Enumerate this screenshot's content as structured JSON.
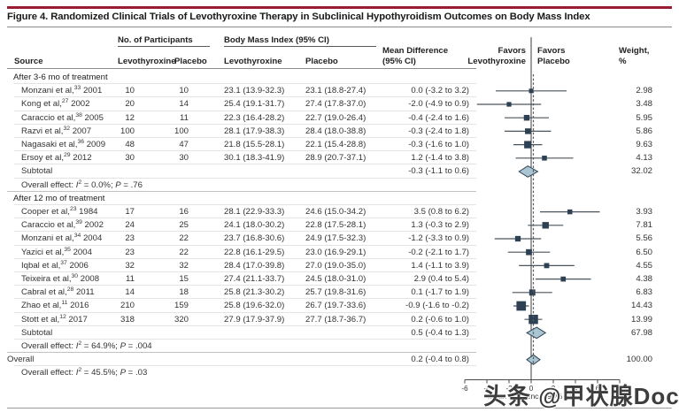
{
  "figure_title": "Figure 4. Randomized Clinical Trials of Levothyroxine Therapy in Subclinical Hypothyroidism Outcomes on Body Mass Index",
  "header": {
    "participants_group": "No. of Participants",
    "bmi_group": "Body Mass Index (95% CI)",
    "source": "Source",
    "col_levothyroxine": "Levothyroxine",
    "col_placebo": "Placebo",
    "col_bmi_levothyroxine": "Levothyroxine",
    "col_bmi_placebo": "Placebo",
    "mean_difference_line1": "Mean Difference",
    "mean_difference_line2": "(95% CI)",
    "favors_left_line1": "Favors",
    "favors_left_line2": "Levothyroxine",
    "favors_right_line1": "Favors",
    "favors_right_line2": "Placebo",
    "weight_line1": "Weight,",
    "weight_line2": "%"
  },
  "chart_data": {
    "type": "forest",
    "xlabel": "Mean Difference (95% CI)",
    "xlim": [
      -6,
      8
    ],
    "ticks": [
      -6,
      -4,
      -2,
      0,
      2,
      4,
      6,
      8
    ],
    "zero_line_x": 0,
    "dashed_line_x": 0.2,
    "groups": [
      {
        "label": "After 3-6 mo of treatment",
        "studies": [
          {
            "name": "Monzani et al,",
            "ref": "33",
            "year": "2001",
            "n_levo": "10",
            "n_placebo": "10",
            "bmi_levo": "23.1 (13.9-32.3)",
            "bmi_placebo": "23.1 (18.8-27.4)",
            "md_text": "0.0 (-3.2 to 3.2)",
            "md": 0.0,
            "lo": -3.2,
            "hi": 3.2,
            "weight": "2.98"
          },
          {
            "name": "Kong et al,",
            "ref": "27",
            "year": "2002",
            "n_levo": "20",
            "n_placebo": "14",
            "bmi_levo": "25.4 (19.1-31.7)",
            "bmi_placebo": "27.4 (17.8-37.0)",
            "md_text": "-2.0 (-4.9 to 0.9)",
            "md": -2.0,
            "lo": -4.9,
            "hi": 0.9,
            "weight": "3.48"
          },
          {
            "name": "Caraccio et al,",
            "ref": "38",
            "year": "2005",
            "n_levo": "12",
            "n_placebo": "11",
            "bmi_levo": "22.3 (16.4-28.2)",
            "bmi_placebo": "22.7 (19.0-26.4)",
            "md_text": "-0.4 (-2.4 to 1.6)",
            "md": -0.4,
            "lo": -2.4,
            "hi": 1.6,
            "weight": "5.95"
          },
          {
            "name": "Razvi et al,",
            "ref": "32",
            "year": "2007",
            "n_levo": "100",
            "n_placebo": "100",
            "bmi_levo": "28.1 (17.9-38.3)",
            "bmi_placebo": "28.4 (18.0-38.8)",
            "md_text": "-0.3 (-2.4 to 1.8)",
            "md": -0.3,
            "lo": -2.4,
            "hi": 1.8,
            "weight": "5.86"
          },
          {
            "name": "Nagasaki et al,",
            "ref": "36",
            "year": "2009",
            "n_levo": "48",
            "n_placebo": "47",
            "bmi_levo": "21.8 (15.5-28.1)",
            "bmi_placebo": "22.1 (15.4-28.8)",
            "md_text": "-0.3 (-1.6 to 1.0)",
            "md": -0.3,
            "lo": -1.6,
            "hi": 1.0,
            "weight": "9.63"
          },
          {
            "name": "Ersoy et al,",
            "ref": "29",
            "year": "2012",
            "n_levo": "30",
            "n_placebo": "30",
            "bmi_levo": "30.1 (18.3-41.9)",
            "bmi_placebo": "28.9 (20.7-37.1)",
            "md_text": "1.2 (-1.4 to 3.8)",
            "md": 1.2,
            "lo": -1.4,
            "hi": 3.8,
            "weight": "4.13"
          }
        ],
        "subtotal": {
          "label": "Subtotal",
          "md_text": "-0.3 (-1.1 to 0.6)",
          "md": -0.3,
          "lo": -1.1,
          "hi": 0.6,
          "weight": "32.02"
        },
        "effect_note": {
          "label": "Overall effect:",
          "i2": "0.0%",
          "p": ".76"
        }
      },
      {
        "label": "After 12 mo of treatment",
        "studies": [
          {
            "name": "Cooper et al,",
            "ref": "23",
            "year": "1984",
            "n_levo": "17",
            "n_placebo": "16",
            "bmi_levo": "28.1 (22.9-33.3)",
            "bmi_placebo": "24.6 (15.0-34.2)",
            "md_text": "3.5 (0.8 to 6.2)",
            "md": 3.5,
            "lo": 0.8,
            "hi": 6.2,
            "weight": "3.93"
          },
          {
            "name": "Caraccio et al,",
            "ref": "39",
            "year": "2002",
            "n_levo": "24",
            "n_placebo": "25",
            "bmi_levo": "24.1 (18.0-30.2)",
            "bmi_placebo": "22.8 (17.5-28.1)",
            "md_text": "1.3 (-0.3 to 2.9)",
            "md": 1.3,
            "lo": -0.3,
            "hi": 2.9,
            "weight": "7.81"
          },
          {
            "name": "Monzani et al,",
            "ref": "34",
            "year": "2004",
            "n_levo": "23",
            "n_placebo": "22",
            "bmi_levo": "23.7 (16.8-30.6)",
            "bmi_placebo": "24.9 (17.5-32.3)",
            "md_text": "-1.2 (-3.3 to 0.9)",
            "md": -1.2,
            "lo": -3.3,
            "hi": 0.9,
            "weight": "5.56"
          },
          {
            "name": "Yazici et al,",
            "ref": "35",
            "year": "2004",
            "n_levo": "23",
            "n_placebo": "22",
            "bmi_levo": "22.8 (16.1-29.5)",
            "bmi_placebo": "23.0 (16.9-29.1)",
            "md_text": "-0.2 (-2.1 to 1.7)",
            "md": -0.2,
            "lo": -2.1,
            "hi": 1.7,
            "weight": "6.50"
          },
          {
            "name": "Iqbal et al,",
            "ref": "37",
            "year": "2006",
            "n_levo": "32",
            "n_placebo": "32",
            "bmi_levo": "28.4 (17.0-39.8)",
            "bmi_placebo": "27.0 (19.0-35.0)",
            "md_text": "1.4 (-1.1 to 3.9)",
            "md": 1.4,
            "lo": -1.1,
            "hi": 3.9,
            "weight": "4.55"
          },
          {
            "name": "Teixeira et al,",
            "ref": "30",
            "year": "2008",
            "n_levo": "11",
            "n_placebo": "15",
            "bmi_levo": "27.4 (21.1-33.7)",
            "bmi_placebo": "24.5 (18.0-31.0)",
            "md_text": "2.9 (0.4 to 5.4)",
            "md": 2.9,
            "lo": 0.4,
            "hi": 5.4,
            "weight": "4.38"
          },
          {
            "name": "Cabral et al,",
            "ref": "28",
            "year": "2011",
            "n_levo": "14",
            "n_placebo": "18",
            "bmi_levo": "25.8 (21.3-30.2)",
            "bmi_placebo": "25.7 (19.8-31.6)",
            "md_text": "0.1 (-1.7 to 1.9)",
            "md": 0.1,
            "lo": -1.7,
            "hi": 1.9,
            "weight": "6.83"
          },
          {
            "name": "Zhao et al,",
            "ref": "11",
            "year": "2016",
            "n_levo": "210",
            "n_placebo": "159",
            "bmi_levo": "25.8 (19.6-32.0)",
            "bmi_placebo": "26.7 (19.7-33.6)",
            "md_text": "-0.9 (-1.6 to -0.2)",
            "md": -0.9,
            "lo": -1.6,
            "hi": -0.2,
            "weight": "14.43"
          },
          {
            "name": "Stott et al,",
            "ref": "12",
            "year": "2017",
            "n_levo": "318",
            "n_placebo": "320",
            "bmi_levo": "27.9 (17.9-37.9)",
            "bmi_placebo": "27.7 (18.7-36.7)",
            "md_text": "0.2 (-0.6 to 1.0)",
            "md": 0.2,
            "lo": -0.6,
            "hi": 1.0,
            "weight": "13.99"
          }
        ],
        "subtotal": {
          "label": "Subtotal",
          "md_text": "0.5 (-0.4 to 1.3)",
          "md": 0.5,
          "lo": -0.4,
          "hi": 1.3,
          "weight": "67.98"
        },
        "effect_note": {
          "label": "Overall effect:",
          "i2": "64.9%",
          "p": ".004"
        }
      }
    ],
    "overall": {
      "label": "Overall",
      "md_text": "0.2 (-0.4 to 0.8)",
      "md": 0.2,
      "lo": -0.4,
      "hi": 0.8,
      "weight": "100.00",
      "effect_note": {
        "label": "Overall effect:",
        "i2": "45.5%",
        "p": ".03"
      }
    }
  },
  "colors": {
    "accent_rule": "#9a1c33",
    "square": "#2e4154",
    "diamond_fill": "#a8c5d1",
    "diamond_border": "#2e4154",
    "ci_line": "#4a545c",
    "zero_line": "#3c3c3c",
    "dashed_line": "#5a5a5a",
    "axis": "#4a4a4a"
  },
  "watermark": "头条 @甲状腺Doctor"
}
